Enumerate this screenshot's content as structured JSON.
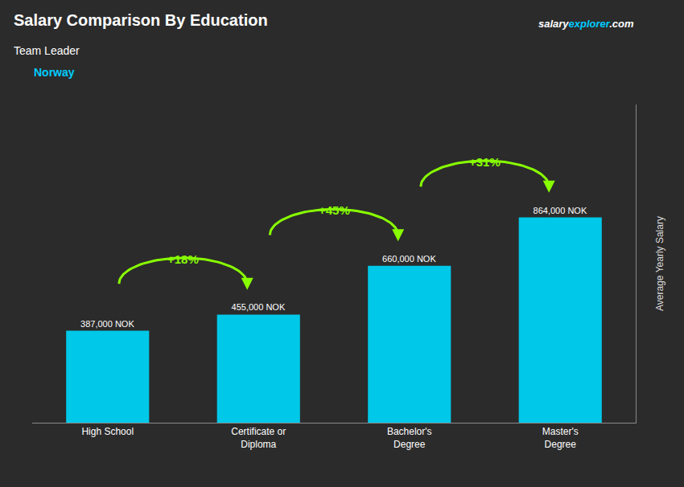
{
  "chart_data": {
    "type": "bar",
    "title": "Salary Comparison By Education",
    "subtitle": "Team Leader",
    "ylabel": "Average Yearly Salary",
    "categories": [
      "High School",
      "Certificate or\nDiploma",
      "Bachelor's\nDegree",
      "Master's\nDegree"
    ],
    "values": [
      387000,
      455000,
      660000,
      864000
    ],
    "value_labels": [
      "387,000 NOK",
      "455,000 NOK",
      "660,000 NOK",
      "864,000 NOK"
    ],
    "data_labels": true,
    "color": "#00c8e8",
    "ylim": [
      0,
      1339200
    ],
    "tick_labels": "x",
    "annotations": [
      {
        "text": "+18%",
        "color": "#88ff00"
      },
      {
        "text": "+45%",
        "color": "#88ff00"
      },
      {
        "text": "+31%",
        "color": "#88ff00"
      },
      {
        "text": "Norway",
        "color": "#00ccff"
      },
      {
        "text": [
          "salary",
          "explorer",
          ".com"
        ],
        "colors": [
          "#ffffff",
          "#00ccff",
          "#ffffff"
        ]
      }
    ]
  }
}
